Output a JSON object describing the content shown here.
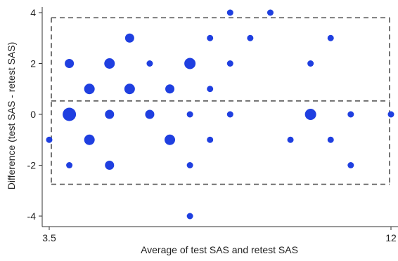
{
  "chart_data": {
    "type": "scatter",
    "title": "",
    "xlabel": "Average of test SAS and retest SAS",
    "ylabel": "Difference (test SAS - retest SAS)",
    "xlim": [
      3.5,
      12
    ],
    "ylim": [
      -4.3,
      4.3
    ],
    "x_ticks": [
      3.5,
      12
    ],
    "x_tick_labels": [
      "3.5",
      "12"
    ],
    "y_ticks": [
      -4,
      -2,
      0,
      2,
      4
    ],
    "y_tick_labels": [
      "-4",
      "-2",
      "0",
      "2",
      "4"
    ],
    "mean_difference": 0.53,
    "upper_limit_of_agreement": 3.8,
    "lower_limit_of_agreement": -2.75,
    "marker_color": "#1f3fe0",
    "reference_line_color": "#666666",
    "grid": false,
    "note": "marker size reflects the number of overlapping observations",
    "points": [
      {
        "x": 3.5,
        "y": -1,
        "n": 1
      },
      {
        "x": 4.0,
        "y": 2,
        "n": 2
      },
      {
        "x": 4.0,
        "y": 0,
        "n": 5
      },
      {
        "x": 4.0,
        "y": -2,
        "n": 1
      },
      {
        "x": 4.5,
        "y": 1,
        "n": 3
      },
      {
        "x": 4.5,
        "y": -1,
        "n": 3
      },
      {
        "x": 5.0,
        "y": 2,
        "n": 3
      },
      {
        "x": 5.0,
        "y": 0,
        "n": 2
      },
      {
        "x": 5.0,
        "y": -2,
        "n": 2
      },
      {
        "x": 5.5,
        "y": 3,
        "n": 2
      },
      {
        "x": 5.5,
        "y": 1,
        "n": 3
      },
      {
        "x": 6.0,
        "y": 2,
        "n": 1
      },
      {
        "x": 6.0,
        "y": 0,
        "n": 2
      },
      {
        "x": 6.5,
        "y": 1,
        "n": 2
      },
      {
        "x": 6.5,
        "y": -1,
        "n": 3
      },
      {
        "x": 7.0,
        "y": 2,
        "n": 4
      },
      {
        "x": 7.0,
        "y": 0,
        "n": 1
      },
      {
        "x": 7.0,
        "y": -2,
        "n": 1
      },
      {
        "x": 7.0,
        "y": -4,
        "n": 1
      },
      {
        "x": 7.5,
        "y": 3,
        "n": 1
      },
      {
        "x": 7.5,
        "y": 1,
        "n": 1
      },
      {
        "x": 7.5,
        "y": -1,
        "n": 1
      },
      {
        "x": 8.0,
        "y": 4,
        "n": 1
      },
      {
        "x": 8.0,
        "y": 2,
        "n": 1
      },
      {
        "x": 8.0,
        "y": 0,
        "n": 1
      },
      {
        "x": 8.5,
        "y": 3,
        "n": 1
      },
      {
        "x": 9.0,
        "y": 4,
        "n": 1
      },
      {
        "x": 9.5,
        "y": -1,
        "n": 1
      },
      {
        "x": 10.0,
        "y": 2,
        "n": 1
      },
      {
        "x": 10.0,
        "y": 0,
        "n": 4
      },
      {
        "x": 10.5,
        "y": 3,
        "n": 1
      },
      {
        "x": 10.5,
        "y": -1,
        "n": 1
      },
      {
        "x": 11.0,
        "y": 0,
        "n": 1
      },
      {
        "x": 11.0,
        "y": -2,
        "n": 1
      },
      {
        "x": 12.0,
        "y": 0,
        "n": 1
      }
    ]
  }
}
